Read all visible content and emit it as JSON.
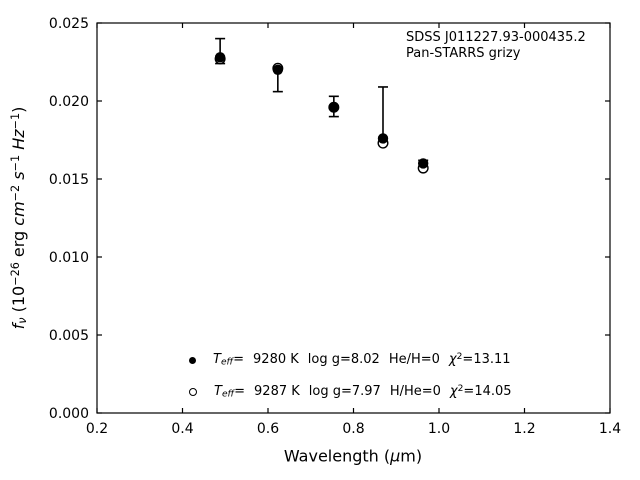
{
  "figure": {
    "colors": {
      "foreground": "#000000",
      "background": "#ffffff"
    },
    "annotation": {
      "line1": "SDSS J011227.93-000435.2",
      "line2": "Pan-STARRS grizy"
    }
  },
  "axes": {
    "x_label": {
      "prefix": "Wavelength (",
      "mu": "μ",
      "suffix": "m)"
    },
    "y_label": {
      "f": "f",
      "nu": "ν",
      "p1": " (10",
      "e1": "−26",
      "p2": " erg ",
      "cm": "cm",
      "e2": "−2",
      "s": " s",
      "e3": "−1",
      "hz": " Hz",
      "e4": "−1",
      "p5": ")"
    }
  },
  "legend": {
    "rows": [
      {
        "marker": "filled-circle",
        "t": "T",
        "t_sub": "eff",
        "eq": "=",
        "teff": "9280 K",
        "logg": "log g=8.02",
        "ratio": "He/H=0",
        "chi": "χ",
        "chi_sup": "2",
        "chi_val": "=13.11"
      },
      {
        "marker": "open-circle",
        "t": "T",
        "t_sub": "eff",
        "eq": "=",
        "teff": "9287 K",
        "logg": "log g=7.97",
        "ratio": "H/He=0",
        "chi": "χ",
        "chi_sup": "2",
        "chi_val": "=14.05"
      }
    ]
  },
  "chart_data": {
    "type": "scatter",
    "xlabel": "Wavelength (μm)",
    "ylabel": "f_ν (10^−26 erg cm^−2 s^−1 Hz^−1)",
    "xlim": [
      0.2,
      1.4
    ],
    "ylim": [
      0.0,
      0.025
    ],
    "xticks": [
      0.2,
      0.4,
      0.6,
      0.8,
      1.0,
      1.2,
      1.4
    ],
    "xtick_labels": [
      "0.2",
      "0.4",
      "0.6",
      "0.8",
      "1.0",
      "1.2",
      "1.4"
    ],
    "yticks": [
      0.0,
      0.005,
      0.01,
      0.015,
      0.02,
      0.025
    ],
    "ytick_labels": [
      "0.000",
      "0.005",
      "0.010",
      "0.015",
      "0.020",
      "0.025"
    ],
    "grid": false,
    "tick_direction": "in, mirrored on all four spines",
    "bands": [
      "g",
      "r",
      "i",
      "z",
      "y"
    ],
    "x": [
      0.488,
      0.623,
      0.754,
      0.869,
      0.963
    ],
    "series": [
      {
        "name": "Teff= 9280 K  log g=8.02  He/H=0  chi2=13.11",
        "marker": "filled-circle",
        "values": [
          0.0228,
          0.022,
          0.0196,
          0.0176,
          0.016
        ]
      },
      {
        "name": "Teff= 9287 K  log g=7.97  H/He=0  chi2=14.05",
        "marker": "open-circle",
        "values": [
          0.0227,
          0.0221,
          0.0196,
          0.0173,
          0.0157
        ]
      }
    ],
    "error_bars": {
      "low": [
        0.0224,
        0.0206,
        0.019,
        0.0174,
        0.0158
      ],
      "high": [
        0.024,
        0.0221,
        0.0203,
        0.0209,
        0.0162
      ]
    },
    "annotations": [
      "SDSS J011227.93-000435.2",
      "Pan-STARRS grizy"
    ],
    "legend_position": "inside axes, lower center-left"
  }
}
